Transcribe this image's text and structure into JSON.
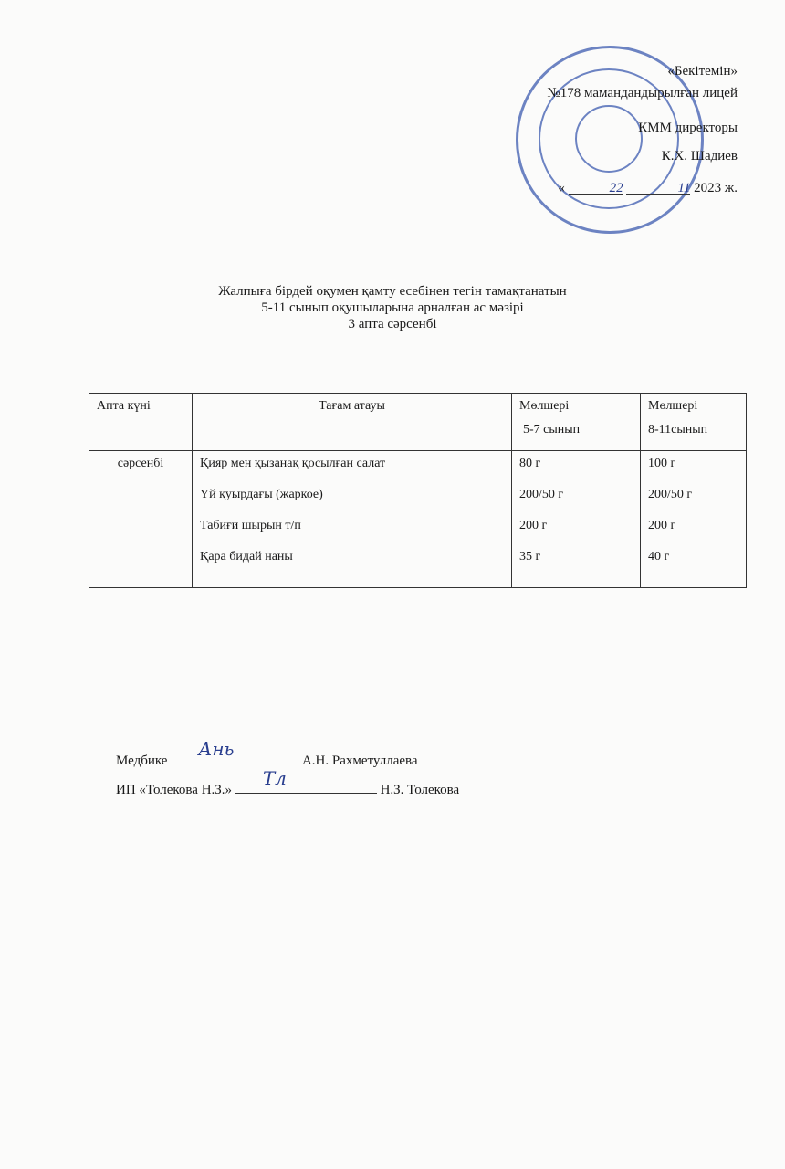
{
  "approval": {
    "approve": "«Бекітемін»",
    "org": "№178 мамандандырылған лицей",
    "position": "КММ директоры",
    "name": "К.Х. Шадиев",
    "date_day": "22",
    "date_month": "11",
    "date_year": "2023 ж."
  },
  "title": {
    "line1": "Жалпыға бірдей оқумен қамту есебінен тегін тамақтанатын",
    "line2": "5-11 сынып оқушыларына арналған ас мәзірі",
    "line3": "3 апта сәрсенбі"
  },
  "table": {
    "headers": [
      "Апта күні",
      "Тағам атауы",
      "Мөлшері",
      "Мөлшері"
    ],
    "subheaders": [
      "5-7 сынып",
      "8-11сынып"
    ],
    "day": "сәрсенбі",
    "dishes": [
      "Қияр мен қызанақ қосылған салат",
      "Үй қуырдағы (жаркое)",
      "Табиғи шырын т/п",
      "Қара бидай наны"
    ],
    "qty_5_7": [
      "80 г",
      "200/50 г",
      "200 г",
      "35 г"
    ],
    "qty_8_11": [
      "100 г",
      "200/50 г",
      "200 г",
      "40 г"
    ]
  },
  "signatures": {
    "nurse_label": "Медбике",
    "nurse_name": "А.Н. Рахметуллаева",
    "nurse_sign": "Ань",
    "ip_label": "ИП «Толекова Н.З.»",
    "ip_name": "Н.З. Толекова",
    "ip_sign": "Тл"
  },
  "colors": {
    "stamp": "#3d5bb0"
  }
}
